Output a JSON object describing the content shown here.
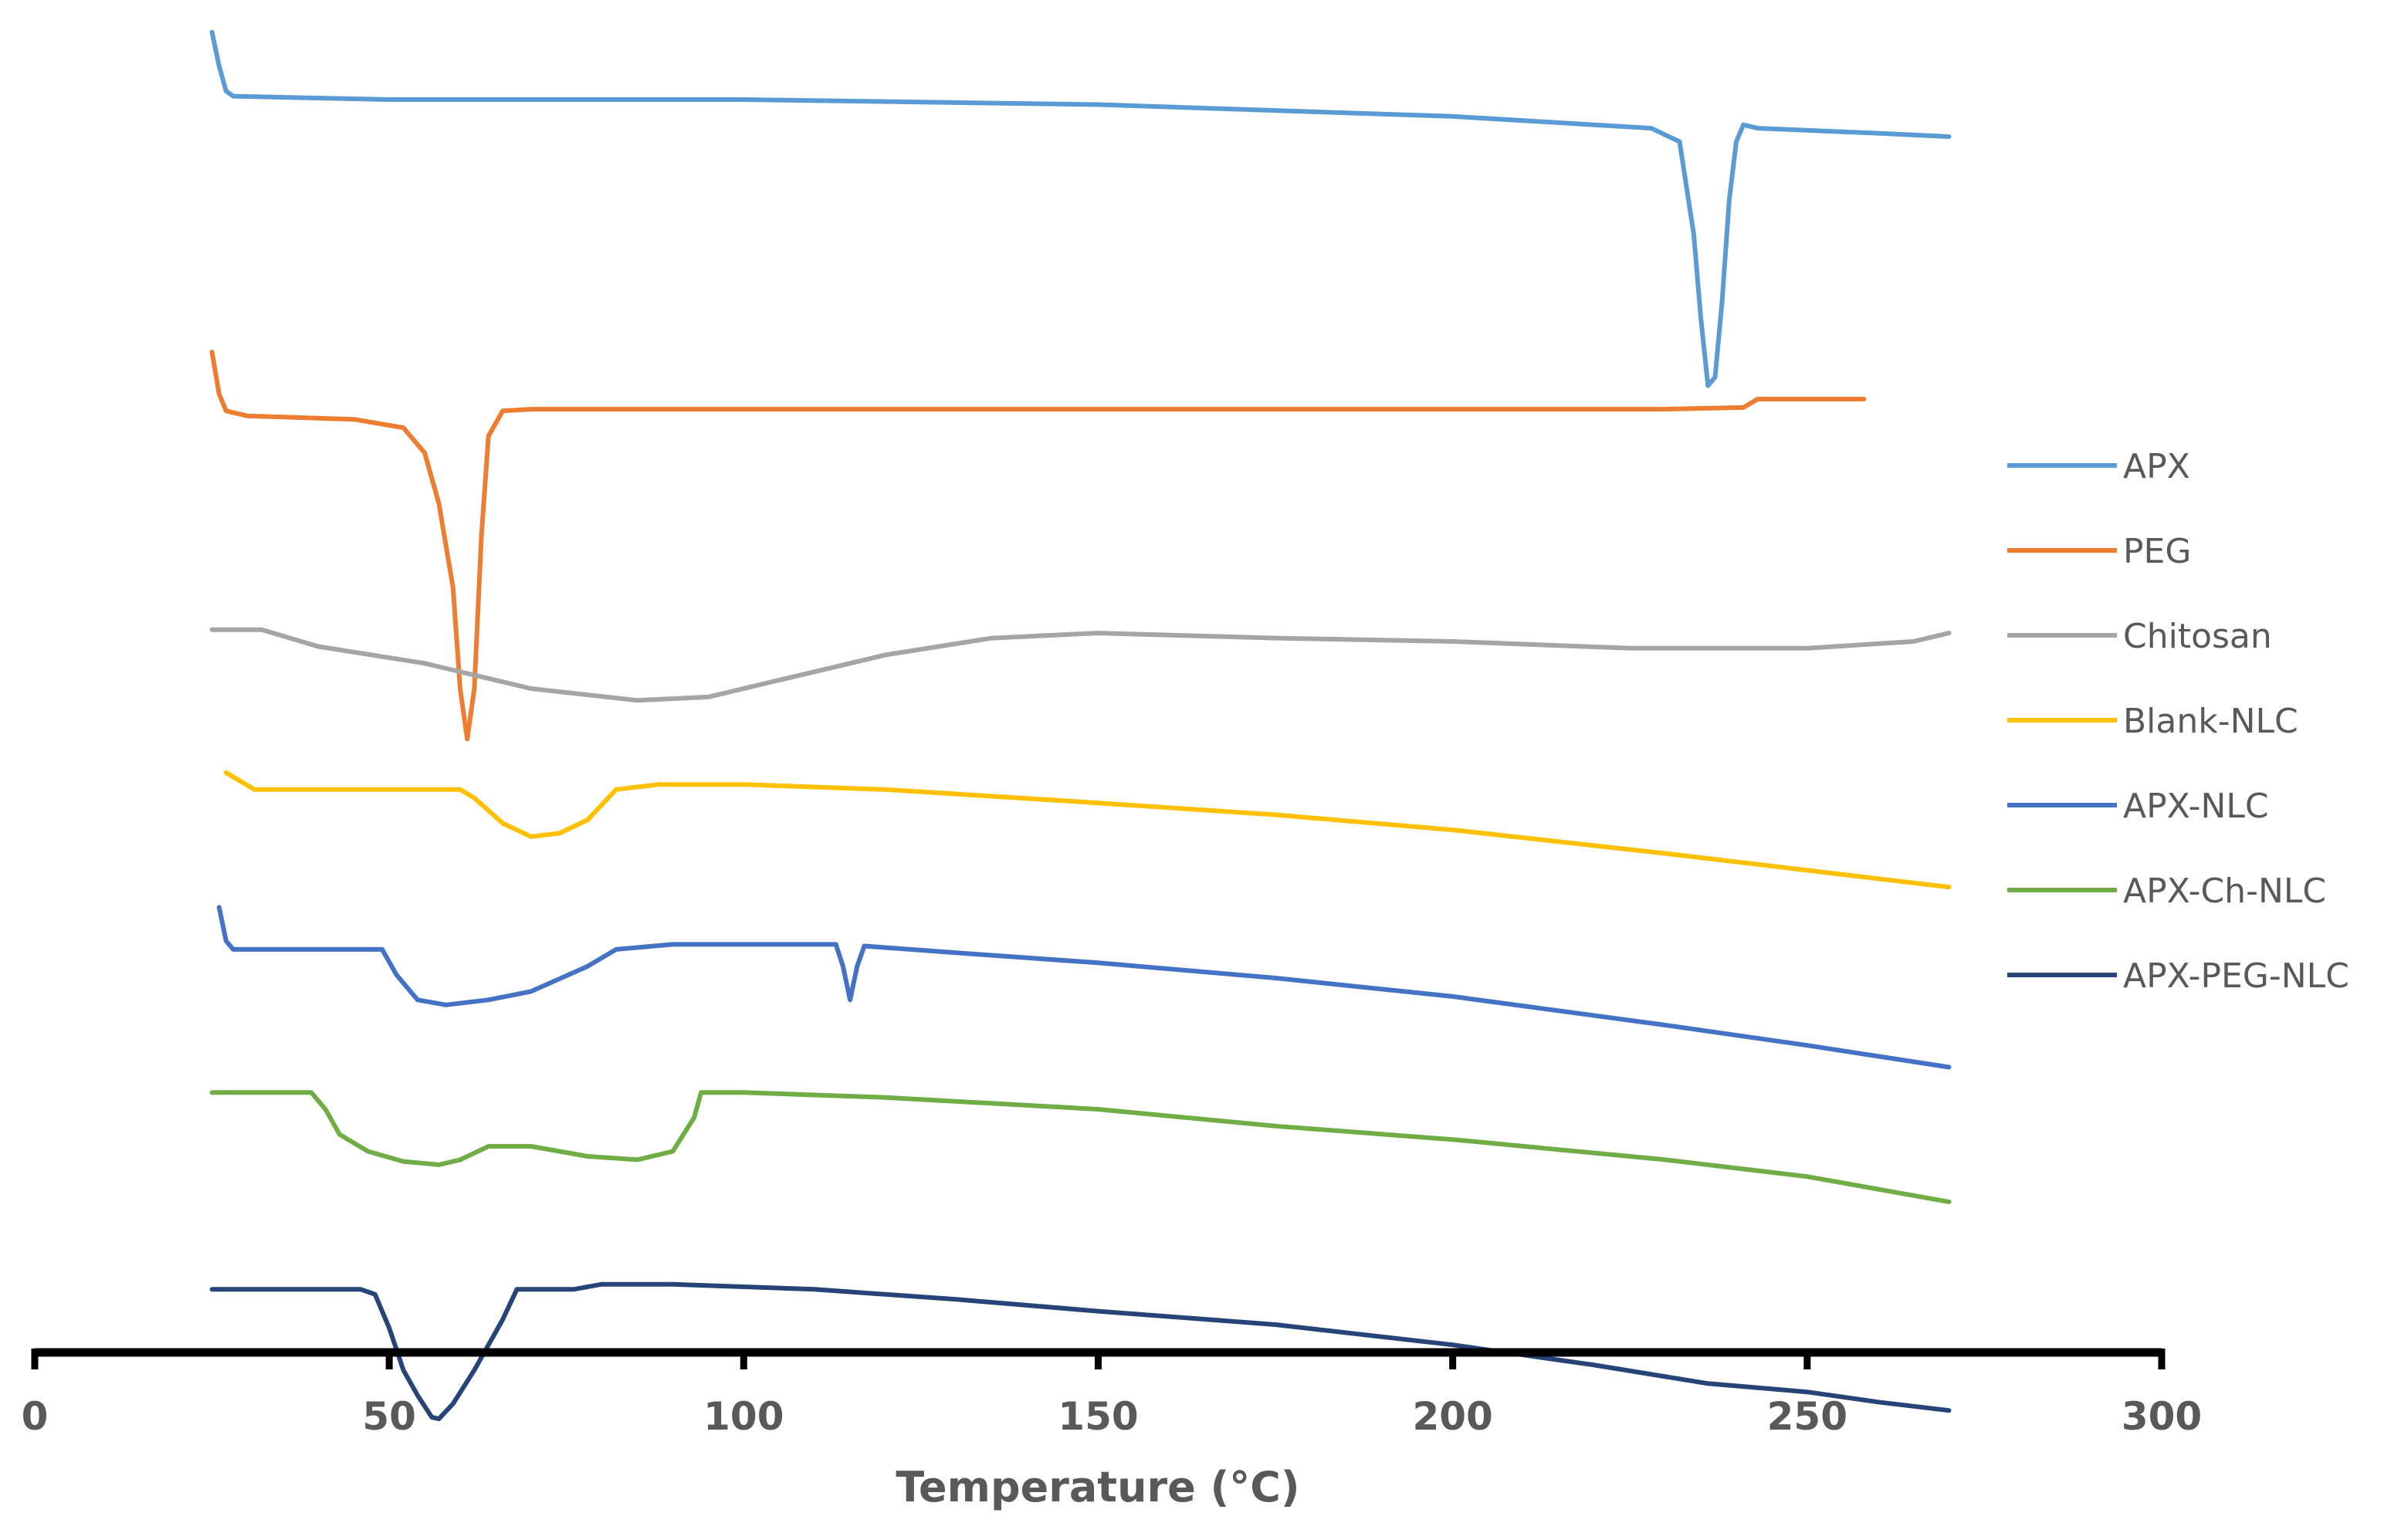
{
  "chart_data": {
    "type": "line",
    "title": "",
    "xlabel": "Temperature (°C)",
    "ylabel": "",
    "xlim": [
      0,
      300
    ],
    "xticks": [
      "0",
      "50",
      "100",
      "150",
      "200",
      "250",
      "300"
    ],
    "y_axis_shown": false,
    "grid": false,
    "legend_position": "right",
    "series": [
      {
        "name": "APX",
        "color": "#5B9BD5",
        "offset": 9.2,
        "points": [
          [
            25,
            9.5
          ],
          [
            26,
            9.3
          ],
          [
            27,
            9.15
          ],
          [
            28,
            9.12
          ],
          [
            50,
            9.1
          ],
          [
            100,
            9.1
          ],
          [
            150,
            9.07
          ],
          [
            200,
            9.0
          ],
          [
            228,
            8.93
          ],
          [
            232,
            8.85
          ],
          [
            234,
            8.3
          ],
          [
            235,
            7.8
          ],
          [
            236,
            7.4
          ],
          [
            237,
            7.45
          ],
          [
            238,
            7.9
          ],
          [
            239,
            8.5
          ],
          [
            240,
            8.85
          ],
          [
            241,
            8.95
          ],
          [
            243,
            8.93
          ],
          [
            260,
            8.9
          ],
          [
            270,
            8.88
          ]
        ]
      },
      {
        "name": "PEG",
        "color": "#ED7D31",
        "offset": 7.5,
        "points": [
          [
            25,
            7.6
          ],
          [
            26,
            7.35
          ],
          [
            27,
            7.25
          ],
          [
            30,
            7.22
          ],
          [
            45,
            7.2
          ],
          [
            52,
            7.15
          ],
          [
            55,
            7.0
          ],
          [
            57,
            6.7
          ],
          [
            59,
            6.2
          ],
          [
            60,
            5.6
          ],
          [
            61,
            5.3
          ],
          [
            62,
            5.6
          ],
          [
            63,
            6.5
          ],
          [
            64,
            7.1
          ],
          [
            66,
            7.25
          ],
          [
            70,
            7.26
          ],
          [
            100,
            7.26
          ],
          [
            150,
            7.26
          ],
          [
            200,
            7.26
          ],
          [
            230,
            7.26
          ],
          [
            241,
            7.27
          ],
          [
            243,
            7.32
          ],
          [
            250,
            7.32
          ],
          [
            258,
            7.32
          ]
        ]
      },
      {
        "name": "Chitosan",
        "color": "#A5A5A5",
        "offset": 6.0,
        "points": [
          [
            25,
            5.95
          ],
          [
            32,
            5.95
          ],
          [
            40,
            5.85
          ],
          [
            55,
            5.75
          ],
          [
            70,
            5.6
          ],
          [
            85,
            5.53
          ],
          [
            95,
            5.55
          ],
          [
            105,
            5.65
          ],
          [
            120,
            5.8
          ],
          [
            135,
            5.9
          ],
          [
            150,
            5.93
          ],
          [
            175,
            5.9
          ],
          [
            200,
            5.88
          ],
          [
            225,
            5.84
          ],
          [
            250,
            5.84
          ],
          [
            265,
            5.88
          ],
          [
            270,
            5.93
          ]
        ]
      },
      {
        "name": "Blank-NLC",
        "color": "#FFC000",
        "offset": 5.0,
        "points": [
          [
            27,
            5.1
          ],
          [
            31,
            5.0
          ],
          [
            40,
            5.0
          ],
          [
            60,
            5.0
          ],
          [
            62,
            4.95
          ],
          [
            66,
            4.8
          ],
          [
            70,
            4.72
          ],
          [
            74,
            4.74
          ],
          [
            78,
            4.82
          ],
          [
            82,
            5.0
          ],
          [
            88,
            5.03
          ],
          [
            100,
            5.03
          ],
          [
            120,
            5.0
          ],
          [
            150,
            4.92
          ],
          [
            175,
            4.85
          ],
          [
            200,
            4.76
          ],
          [
            230,
            4.62
          ],
          [
            250,
            4.52
          ],
          [
            270,
            4.42
          ]
        ]
      },
      {
        "name": "APX-NLC",
        "color": "#4472C4",
        "offset": 4.0,
        "points": [
          [
            26,
            4.3
          ],
          [
            27,
            4.1
          ],
          [
            28,
            4.05
          ],
          [
            49,
            4.05
          ],
          [
            51,
            3.9
          ],
          [
            54,
            3.75
          ],
          [
            58,
            3.72
          ],
          [
            64,
            3.75
          ],
          [
            70,
            3.8
          ],
          [
            78,
            3.95
          ],
          [
            82,
            4.05
          ],
          [
            90,
            4.08
          ],
          [
            100,
            4.08
          ],
          [
            113,
            4.08
          ],
          [
            114,
            3.95
          ],
          [
            115,
            3.75
          ],
          [
            116,
            3.95
          ],
          [
            117,
            4.07
          ],
          [
            130,
            4.03
          ],
          [
            150,
            3.97
          ],
          [
            175,
            3.88
          ],
          [
            200,
            3.77
          ],
          [
            230,
            3.6
          ],
          [
            250,
            3.48
          ],
          [
            270,
            3.35
          ]
        ]
      },
      {
        "name": "APX-Ch-NLC",
        "color": "#70AD47",
        "offset": 3.0,
        "points": [
          [
            25,
            3.2
          ],
          [
            39,
            3.2
          ],
          [
            41,
            3.1
          ],
          [
            43,
            2.95
          ],
          [
            47,
            2.85
          ],
          [
            52,
            2.79
          ],
          [
            57,
            2.77
          ],
          [
            60,
            2.8
          ],
          [
            64,
            2.88
          ],
          [
            70,
            2.88
          ],
          [
            78,
            2.82
          ],
          [
            85,
            2.8
          ],
          [
            90,
            2.85
          ],
          [
            93,
            3.05
          ],
          [
            94,
            3.2
          ],
          [
            100,
            3.2
          ],
          [
            120,
            3.17
          ],
          [
            150,
            3.1
          ],
          [
            175,
            3.0
          ],
          [
            200,
            2.92
          ],
          [
            230,
            2.8
          ],
          [
            250,
            2.7
          ],
          [
            270,
            2.55
          ]
        ]
      },
      {
        "name": "APX-PEG-NLC",
        "color": "#264478",
        "offset": 2.0,
        "points": [
          [
            25,
            2.03
          ],
          [
            46,
            2.03
          ],
          [
            48,
            2.0
          ],
          [
            50,
            1.8
          ],
          [
            52,
            1.55
          ],
          [
            54,
            1.4
          ],
          [
            56,
            1.27
          ],
          [
            57,
            1.26
          ],
          [
            59,
            1.35
          ],
          [
            62,
            1.55
          ],
          [
            66,
            1.85
          ],
          [
            68,
            2.03
          ],
          [
            76,
            2.03
          ],
          [
            80,
            2.06
          ],
          [
            90,
            2.06
          ],
          [
            110,
            2.03
          ],
          [
            130,
            1.97
          ],
          [
            150,
            1.9
          ],
          [
            175,
            1.82
          ],
          [
            200,
            1.7
          ],
          [
            220,
            1.58
          ],
          [
            236,
            1.47
          ],
          [
            250,
            1.42
          ],
          [
            260,
            1.36
          ],
          [
            270,
            1.31
          ]
        ]
      }
    ]
  }
}
